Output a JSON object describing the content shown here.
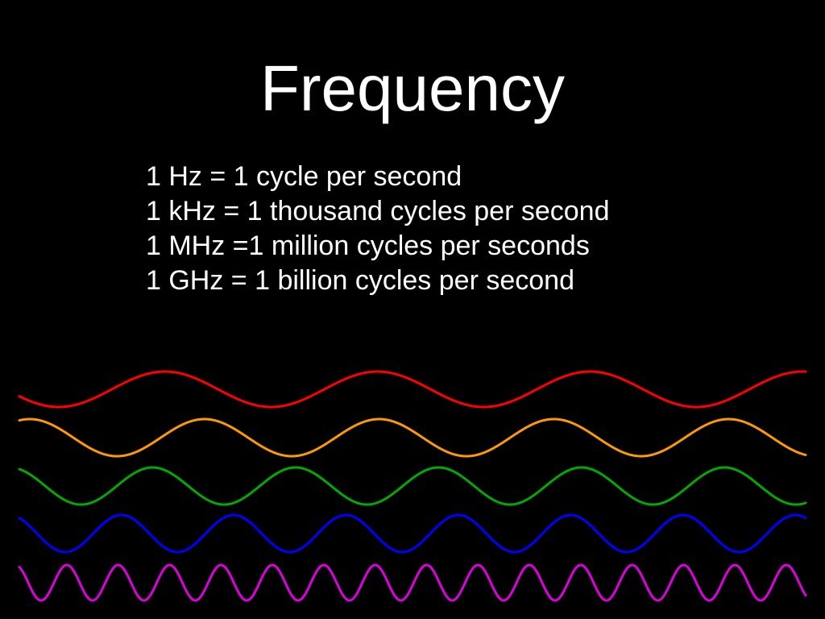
{
  "slide": {
    "title": "Frequency",
    "lines": [
      "1 Hz = 1 cycle per second",
      "1 kHz = 1 thousand cycles per second",
      "1 MHz =1 million cycles per seconds",
      "1 GHz = 1 billion cycles per second"
    ]
  },
  "waves": [
    {
      "name": "red-wave",
      "color": "#ff0000",
      "cycles": 3.7
    },
    {
      "name": "orange-wave",
      "color": "#ff9900",
      "cycles": 4.5
    },
    {
      "name": "green-wave",
      "color": "#00aa00",
      "cycles": 5.5
    },
    {
      "name": "blue-wave",
      "color": "#0000ff",
      "cycles": 7
    },
    {
      "name": "magenta-wave",
      "color": "#dd00dd",
      "cycles": 15.3
    }
  ]
}
